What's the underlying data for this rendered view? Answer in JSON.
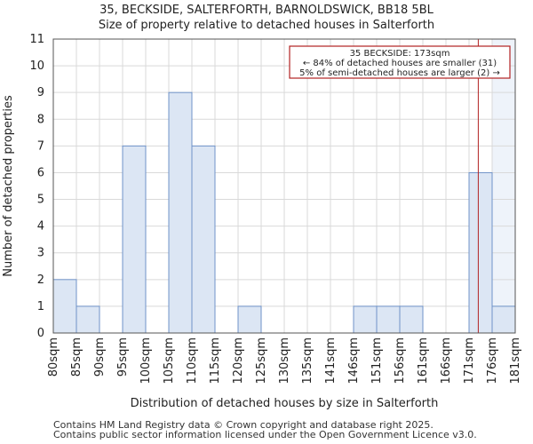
{
  "header": {
    "title": "35, BECKSIDE, SALTERFORTH, BARNOLDSWICK, BB18 5BL",
    "subtitle": "Size of property relative to detached houses in Salterforth"
  },
  "chart_data": {
    "type": "bar",
    "title": "35, BECKSIDE, SALTERFORTH, BARNOLDSWICK, BB18 5BL",
    "subtitle": "Size of property relative to detached houses in Salterforth",
    "xlabel": "Distribution of detached houses by size in Salterforth",
    "ylabel": "Number of detached properties",
    "bin_edges": [
      "80sqm",
      "85sqm",
      "90sqm",
      "95sqm",
      "100sqm",
      "105sqm",
      "110sqm",
      "115sqm",
      "120sqm",
      "125sqm",
      "130sqm",
      "135sqm",
      "141sqm",
      "146sqm",
      "151sqm",
      "156sqm",
      "161sqm",
      "166sqm",
      "171sqm",
      "176sqm",
      "181sqm"
    ],
    "values": [
      2,
      1,
      0,
      7,
      0,
      9,
      7,
      0,
      1,
      0,
      0,
      0,
      0,
      1,
      1,
      1,
      0,
      0,
      6,
      1
    ],
    "yticks": [
      0,
      1,
      2,
      3,
      4,
      5,
      6,
      7,
      8,
      9,
      10,
      11
    ],
    "ylim": [
      0,
      11
    ],
    "grid": true,
    "marker": {
      "bin_position": 18.4,
      "label": "35 BECKSIDE: 173sqm"
    },
    "highlight_from_bin": 19,
    "annotation": {
      "lines": [
        "35 BECKSIDE: 173sqm",
        "← 84% of detached houses are smaller (31)",
        "5% of semi-detached houses are larger (2) →"
      ],
      "placement": "top-right"
    },
    "colors": {
      "bar_fill": "#dce6f4",
      "bar_stroke": "#6f93c9",
      "highlight_fill": "#eef3fa",
      "grid": "#d9d9d9",
      "marker": "#b22222"
    }
  },
  "footer": {
    "line1": "Contains HM Land Registry data © Crown copyright and database right 2025.",
    "line2": "Contains public sector information licensed under the Open Government Licence v3.0."
  }
}
